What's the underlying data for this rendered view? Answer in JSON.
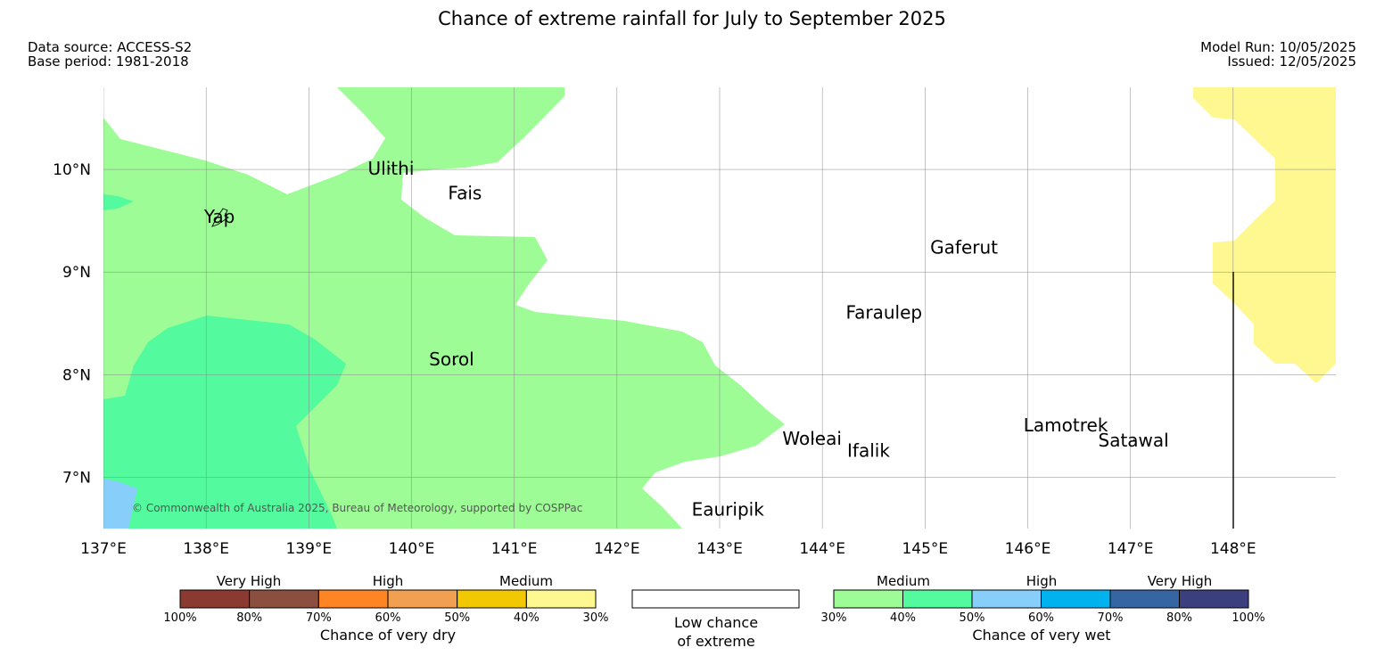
{
  "title": "Chance of extreme rainfall for July to September 2025",
  "meta": {
    "data_source": "Data source: ACCESS-S2",
    "base_period": "Base period: 1981-2018",
    "model_run": "Model Run: 10/05/2025",
    "issued": "Issued: 12/05/2025"
  },
  "map": {
    "lon_range": [
      137,
      149
    ],
    "lat_range": [
      6.5,
      10.8
    ],
    "lon_ticks": [
      "137°E",
      "138°E",
      "139°E",
      "140°E",
      "141°E",
      "142°E",
      "143°E",
      "144°E",
      "145°E",
      "146°E",
      "147°E",
      "148°E"
    ],
    "lat_ticks": [
      "10°N",
      "9°N",
      "8°N",
      "7°N"
    ],
    "copyright": "© Commonwealth of Australia 2025, Bureau of Meteorology, supported by COSPPac",
    "places": [
      {
        "name": "Ulithi",
        "lon": 139.8,
        "lat": 10.0
      },
      {
        "name": "Fais",
        "lon": 140.52,
        "lat": 9.76
      },
      {
        "name": "Yap",
        "lon": 138.13,
        "lat": 9.53
      },
      {
        "name": "Gaferut",
        "lon": 145.38,
        "lat": 9.23
      },
      {
        "name": "Faraulep",
        "lon": 144.6,
        "lat": 8.6
      },
      {
        "name": "Sorol",
        "lon": 140.39,
        "lat": 8.14
      },
      {
        "name": "Woleai",
        "lon": 143.9,
        "lat": 7.37
      },
      {
        "name": "Ifalik",
        "lon": 144.45,
        "lat": 7.25
      },
      {
        "name": "Lamotrek",
        "lon": 146.37,
        "lat": 7.5
      },
      {
        "name": "Satawal",
        "lon": 147.03,
        "lat": 7.35
      },
      {
        "name": "Eauripik",
        "lon": 143.08,
        "lat": 6.68
      }
    ],
    "colors": {
      "medium_wet": "#9efc96",
      "high_wet": "#54fb9e",
      "very_high_wet": "#87cefa",
      "medium_dry": "#fff78f"
    }
  },
  "legend": {
    "dry": {
      "categories": [
        "Very High",
        "High",
        "Medium"
      ],
      "ticks": [
        "100%",
        "80%",
        "70%",
        "60%",
        "50%",
        "40%",
        "30%"
      ],
      "colors": [
        "#8b3a32",
        "#8b4f3f",
        "#ff8424",
        "#f0a050",
        "#f2c800",
        "#fff78f"
      ],
      "label": "Chance of very dry"
    },
    "low": {
      "label_line1": "Low chance",
      "label_line2": "of extreme"
    },
    "wet": {
      "categories": [
        "Medium",
        "High",
        "Very High"
      ],
      "ticks": [
        "30%",
        "40%",
        "50%",
        "60%",
        "70%",
        "80%",
        "100%"
      ],
      "colors": [
        "#9efc96",
        "#54fb9e",
        "#87cefa",
        "#00b3ef",
        "#3665a4",
        "#3c3f7d"
      ],
      "label": "Chance of very wet"
    }
  }
}
